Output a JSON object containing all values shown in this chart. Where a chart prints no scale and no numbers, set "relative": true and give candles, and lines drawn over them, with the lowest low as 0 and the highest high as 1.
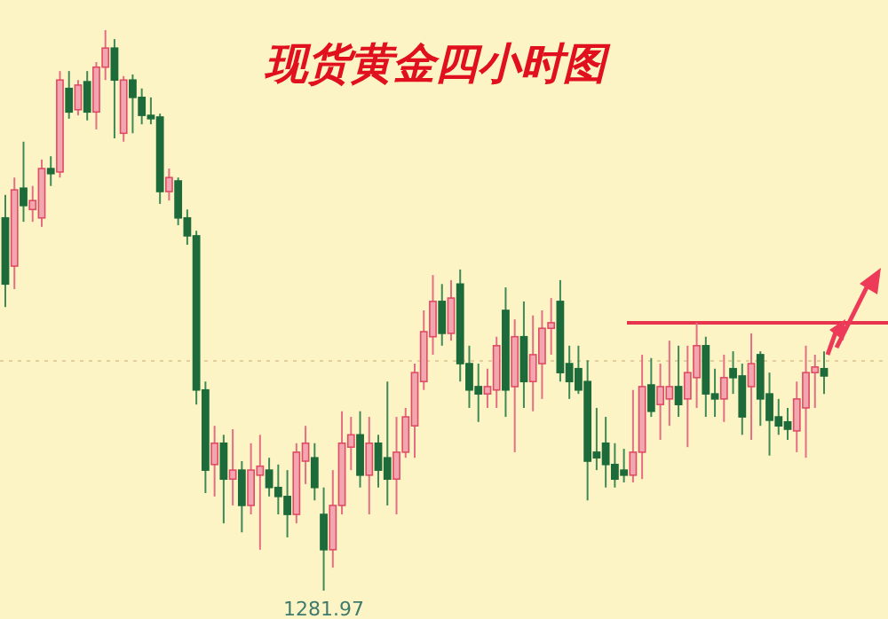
{
  "chart_data": {
    "type": "candlestick",
    "title": "现货黄金四小时图",
    "relative": true,
    "categories": [
      null,
      null,
      null,
      null,
      null,
      null,
      null,
      null,
      null,
      null,
      null,
      null,
      null,
      null,
      null,
      null,
      null,
      null,
      null,
      null,
      null,
      null,
      null,
      null,
      null,
      null,
      null,
      null,
      null,
      null,
      null,
      null,
      null,
      null,
      null,
      null,
      null,
      null,
      null,
      null,
      null,
      null,
      null,
      null,
      null,
      null,
      null,
      null,
      null,
      null,
      null,
      null,
      null,
      null,
      null,
      null,
      null,
      null,
      null,
      null,
      null,
      null,
      null,
      null,
      null,
      null,
      null,
      null,
      null,
      null,
      null,
      null,
      null,
      null,
      null,
      null,
      null,
      null,
      null,
      null,
      null,
      null,
      null,
      null,
      null,
      null,
      null,
      null,
      null,
      null,
      null
    ],
    "ohlc": [
      [
        0.665,
        0.706,
        0.506,
        0.547
      ],
      [
        0.579,
        0.737,
        0.538,
        0.715
      ],
      [
        0.718,
        0.801,
        0.658,
        0.687
      ],
      [
        0.68,
        0.722,
        0.658,
        0.696
      ],
      [
        0.665,
        0.769,
        0.649,
        0.753
      ],
      [
        0.753,
        0.775,
        0.722,
        0.744
      ],
      [
        0.747,
        0.927,
        0.737,
        0.911
      ],
      [
        0.896,
        0.927,
        0.842,
        0.854
      ],
      [
        0.858,
        0.911,
        0.848,
        0.902
      ],
      [
        0.908,
        0.927,
        0.839,
        0.854
      ],
      [
        0.854,
        0.943,
        0.823,
        0.934
      ],
      [
        0.934,
        1,
        0.911,
        0.968
      ],
      [
        0.968,
        0.984,
        0.807,
        0.911
      ],
      [
        0.816,
        0.918,
        0.801,
        0.911
      ],
      [
        0.911,
        0.921,
        0.816,
        0.88
      ],
      [
        0.88,
        0.896,
        0.832,
        0.848
      ],
      [
        0.848,
        0.88,
        0.832,
        0.842
      ],
      [
        0.845,
        0.851,
        0.69,
        0.712
      ],
      [
        0.712,
        0.753,
        0.696,
        0.737
      ],
      [
        0.731,
        0.737,
        0.652,
        0.665
      ],
      [
        0.665,
        0.68,
        0.617,
        0.633
      ],
      [
        0.633,
        0.642,
        0.332,
        0.358
      ],
      [
        0.358,
        0.373,
        0.174,
        0.215
      ],
      [
        0.225,
        0.294,
        0.168,
        0.263
      ],
      [
        0.263,
        0.278,
        0.12,
        0.199
      ],
      [
        0.199,
        0.288,
        0.152,
        0.215
      ],
      [
        0.215,
        0.231,
        0.104,
        0.152
      ],
      [
        0.152,
        0.263,
        0.136,
        0.215
      ],
      [
        0.206,
        0.278,
        0.073,
        0.222
      ],
      [
        0.215,
        0.237,
        0.168,
        0.184
      ],
      [
        0.184,
        0.225,
        0.136,
        0.168
      ],
      [
        0.168,
        0.215,
        0.095,
        0.136
      ],
      [
        0.136,
        0.263,
        0.12,
        0.247
      ],
      [
        0.231,
        0.294,
        0.19,
        0.263
      ],
      [
        0.237,
        0.263,
        0.161,
        0.184
      ],
      [
        0.136,
        0.184,
        0,
        0.073
      ],
      [
        0.073,
        0.215,
        0.041,
        0.152
      ],
      [
        0.152,
        0.32,
        0.136,
        0.263
      ],
      [
        0.256,
        0.31,
        0.215,
        0.278
      ],
      [
        0.278,
        0.32,
        0.184,
        0.206
      ],
      [
        0.206,
        0.31,
        0.136,
        0.263
      ],
      [
        0.263,
        0.278,
        0.184,
        0.215
      ],
      [
        0.237,
        0.373,
        0.152,
        0.199
      ],
      [
        0.199,
        0.31,
        0.136,
        0.247
      ],
      [
        0.247,
        0.326,
        0.237,
        0.31
      ],
      [
        0.294,
        0.405,
        0.237,
        0.389
      ],
      [
        0.373,
        0.5,
        0.358,
        0.462
      ],
      [
        0.453,
        0.563,
        0.421,
        0.516
      ],
      [
        0.516,
        0.547,
        0.437,
        0.459
      ],
      [
        0.459,
        0.554,
        0.446,
        0.522
      ],
      [
        0.547,
        0.573,
        0.373,
        0.405
      ],
      [
        0.405,
        0.437,
        0.326,
        0.358
      ],
      [
        0.364,
        0.405,
        0.301,
        0.351
      ],
      [
        0.351,
        0.396,
        0.326,
        0.364
      ],
      [
        0.358,
        0.453,
        0.326,
        0.437
      ],
      [
        0.5,
        0.541,
        0.31,
        0.358
      ],
      [
        0.364,
        0.484,
        0.247,
        0.453
      ],
      [
        0.453,
        0.516,
        0.326,
        0.373
      ],
      [
        0.373,
        0.491,
        0.32,
        0.421
      ],
      [
        0.405,
        0.5,
        0.342,
        0.468
      ],
      [
        0.468,
        0.522,
        0.421,
        0.478
      ],
      [
        0.516,
        0.554,
        0.373,
        0.389
      ],
      [
        0.405,
        0.437,
        0.342,
        0.373
      ],
      [
        0.396,
        0.437,
        0.351,
        0.358
      ],
      [
        0.373,
        0.411,
        0.161,
        0.231
      ],
      [
        0.247,
        0.326,
        0.215,
        0.237
      ],
      [
        0.263,
        0.31,
        0.184,
        0.225
      ],
      [
        0.225,
        0.263,
        0.184,
        0.199
      ],
      [
        0.215,
        0.253,
        0.193,
        0.206
      ],
      [
        0.206,
        0.358,
        0.193,
        0.247
      ],
      [
        0.247,
        0.421,
        0.199,
        0.364
      ],
      [
        0.367,
        0.415,
        0.31,
        0.32
      ],
      [
        0.332,
        0.405,
        0.269,
        0.364
      ],
      [
        0.342,
        0.446,
        0.294,
        0.364
      ],
      [
        0.364,
        0.437,
        0.31,
        0.332
      ],
      [
        0.342,
        0.437,
        0.256,
        0.389
      ],
      [
        0.38,
        0.478,
        0.326,
        0.437
      ],
      [
        0.437,
        0.453,
        0.31,
        0.351
      ],
      [
        0.351,
        0.396,
        0.31,
        0.342
      ],
      [
        0.342,
        0.421,
        0.301,
        0.38
      ],
      [
        0.396,
        0.427,
        0.351,
        0.38
      ],
      [
        0.383,
        0.405,
        0.278,
        0.31
      ],
      [
        0.364,
        0.459,
        0.269,
        0.405
      ],
      [
        0.421,
        0.427,
        0.294,
        0.342
      ],
      [
        0.351,
        0.389,
        0.241,
        0.304
      ],
      [
        0.31,
        0.342,
        0.278,
        0.294
      ],
      [
        0.301,
        0.326,
        0.269,
        0.288
      ],
      [
        0.285,
        0.373,
        0.247,
        0.342
      ],
      [
        0.326,
        0.437,
        0.237,
        0.389
      ],
      [
        0.389,
        0.421,
        0.326,
        0.399
      ],
      [
        0.396,
        0.427,
        0.351,
        0.383
      ]
    ],
    "ref_lines": [
      {
        "axis": "y",
        "value": 0.478,
        "color": "#e8334f",
        "line_style": "solid"
      },
      {
        "axis": "y",
        "value": 0.41,
        "color": "#e3cf9c",
        "line_style": "dotted"
      }
    ],
    "annotations": [
      {
        "text": "1281.97",
        "y": 0
      }
    ]
  }
}
